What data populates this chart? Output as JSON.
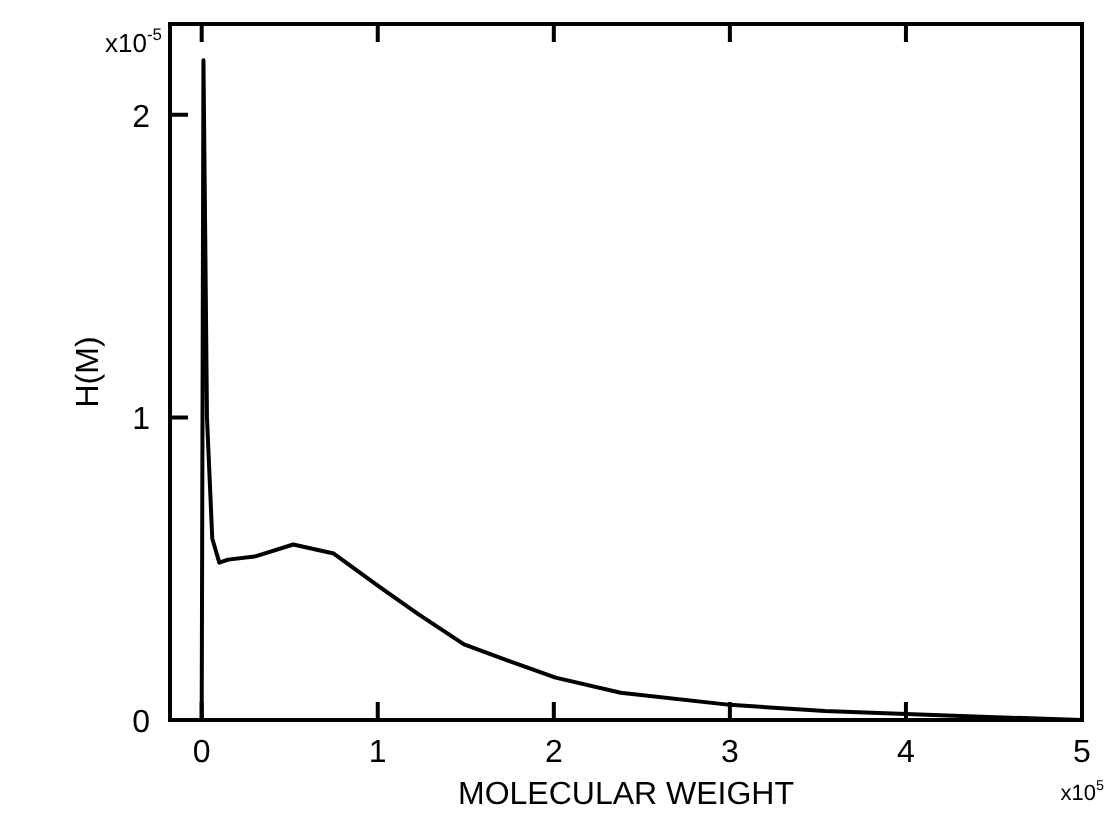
{
  "chart_data": {
    "type": "line",
    "xlabel": "MOLECULAR WEIGHT",
    "ylabel": "H(M)",
    "x": [
      0,
      0.01,
      0.02,
      0.03,
      0.06,
      0.1,
      0.15,
      0.3,
      0.52,
      0.75,
      1.01,
      1.23,
      1.49,
      1.72,
      2.01,
      2.38,
      3.0,
      3.54,
      4.0,
      4.47,
      5.0
    ],
    "series": [
      {
        "color": "#000000",
        "values": [
          0,
          2.18,
          1.6,
          1.0,
          0.6,
          0.52,
          0.53,
          0.54,
          0.58,
          0.55,
          0.44,
          0.35,
          0.25,
          0.2,
          0.14,
          0.09,
          0.05,
          0.03,
          0.02,
          0.01,
          0
        ]
      }
    ],
    "xlim": [
      -0.18,
      5
    ],
    "xticks": [
      0,
      1,
      2,
      3,
      4,
      5
    ],
    "ylim": [
      0,
      2.3
    ],
    "yticks": [
      0,
      1,
      2
    ],
    "annotations": [
      "x10$^{-5}$",
      "x10$^{5}$"
    ],
    "grid": false,
    "legend": false,
    "marker": "none",
    "line_style": "solid"
  }
}
